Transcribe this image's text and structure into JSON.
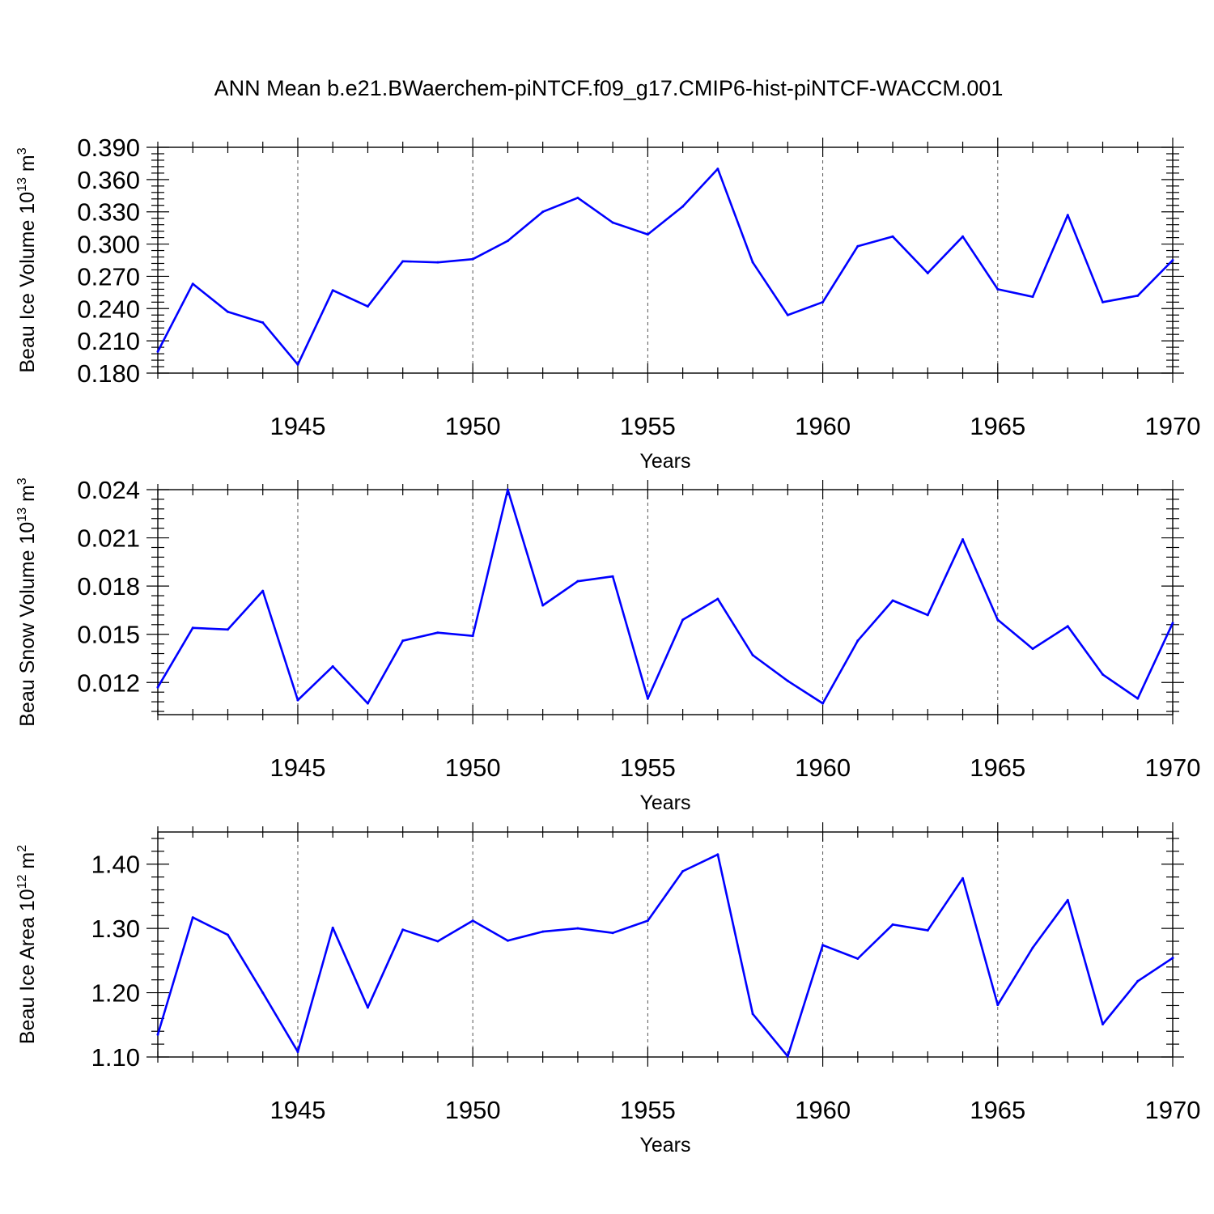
{
  "title": "ANN Mean b.e21.BWaerchem-piNTCF.f09_g17.CMIP6-hist-piNTCF-WACCM.001",
  "colors": {
    "line": "#0000ff",
    "axis": "#000000",
    "grid": "#555555"
  },
  "chart_data": [
    {
      "type": "line",
      "ylabel_main": "Beau Ice Volume 10",
      "ylabel_exp": "13",
      "ylabel_unit": " m",
      "ylabel_unit_exp": "3",
      "xlabel": "Years",
      "xlim": [
        1941,
        1970
      ],
      "ylim": [
        0.18,
        0.39
      ],
      "yticks": [
        0.18,
        0.21,
        0.24,
        0.27,
        0.3,
        0.33,
        0.36,
        0.39
      ],
      "ytick_labels": [
        "0.180",
        "0.210",
        "0.240",
        "0.270",
        "0.300",
        "0.330",
        "0.360",
        "0.390"
      ],
      "xticks": [
        1945,
        1950,
        1955,
        1960,
        1965,
        1970
      ],
      "xtick_labels": [
        "1945",
        "1950",
        "1955",
        "1960",
        "1965",
        "1970"
      ],
      "grid_x": [
        1945,
        1950,
        1955,
        1960,
        1965
      ],
      "x": [
        1941,
        1942,
        1943,
        1944,
        1945,
        1946,
        1947,
        1948,
        1949,
        1950,
        1951,
        1952,
        1953,
        1954,
        1955,
        1956,
        1957,
        1958,
        1959,
        1960,
        1961,
        1962,
        1963,
        1964,
        1965,
        1966,
        1967,
        1968,
        1969,
        1970
      ],
      "values": [
        0.2,
        0.263,
        0.237,
        0.227,
        0.188,
        0.257,
        0.242,
        0.284,
        0.283,
        0.286,
        0.303,
        0.33,
        0.343,
        0.32,
        0.309,
        0.335,
        0.37,
        0.283,
        0.234,
        0.246,
        0.298,
        0.307,
        0.273,
        0.307,
        0.258,
        0.251,
        0.327,
        0.246,
        0.252,
        0.285
      ]
    },
    {
      "type": "line",
      "ylabel_main": "Beau Snow Volume 10",
      "ylabel_exp": "13",
      "ylabel_unit": " m",
      "ylabel_unit_exp": "3",
      "xlabel": "Years",
      "xlim": [
        1941,
        1970
      ],
      "ylim": [
        0.01,
        0.024
      ],
      "yticks": [
        0.012,
        0.015,
        0.018,
        0.021,
        0.024
      ],
      "ytick_labels": [
        "0.012",
        "0.015",
        "0.018",
        "0.021",
        "0.024"
      ],
      "xticks": [
        1945,
        1950,
        1955,
        1960,
        1965,
        1970
      ],
      "xtick_labels": [
        "1945",
        "1950",
        "1955",
        "1960",
        "1965",
        "1970"
      ],
      "grid_x": [
        1945,
        1950,
        1955,
        1960,
        1965
      ],
      "x": [
        1941,
        1942,
        1943,
        1944,
        1945,
        1946,
        1947,
        1948,
        1949,
        1950,
        1951,
        1952,
        1953,
        1954,
        1955,
        1956,
        1957,
        1958,
        1959,
        1960,
        1961,
        1962,
        1963,
        1964,
        1965,
        1966,
        1967,
        1968,
        1969,
        1970
      ],
      "values": [
        0.0117,
        0.0154,
        0.0153,
        0.0177,
        0.0109,
        0.013,
        0.0107,
        0.0146,
        0.0151,
        0.0149,
        0.024,
        0.0168,
        0.0183,
        0.0186,
        0.011,
        0.0159,
        0.0172,
        0.0137,
        0.0121,
        0.0107,
        0.0146,
        0.0171,
        0.0162,
        0.0209,
        0.0159,
        0.0141,
        0.0155,
        0.0125,
        0.011,
        0.0157
      ]
    },
    {
      "type": "line",
      "ylabel_main": "Beau Ice Area 10",
      "ylabel_exp": "12",
      "ylabel_unit": " m",
      "ylabel_unit_exp": "2",
      "xlabel": "Years",
      "xlim": [
        1941,
        1970
      ],
      "ylim": [
        1.1,
        1.45
      ],
      "yticks": [
        1.1,
        1.2,
        1.3,
        1.4
      ],
      "ytick_labels": [
        "1.10",
        "1.20",
        "1.30",
        "1.40"
      ],
      "xticks": [
        1945,
        1950,
        1955,
        1960,
        1965,
        1970
      ],
      "xtick_labels": [
        "1945",
        "1950",
        "1955",
        "1960",
        "1965",
        "1970"
      ],
      "grid_x": [
        1945,
        1950,
        1955,
        1960,
        1965
      ],
      "x": [
        1941,
        1942,
        1943,
        1944,
        1945,
        1946,
        1947,
        1948,
        1949,
        1950,
        1951,
        1952,
        1953,
        1954,
        1955,
        1956,
        1957,
        1958,
        1959,
        1960,
        1961,
        1962,
        1963,
        1964,
        1965,
        1966,
        1967,
        1968,
        1969,
        1970
      ],
      "values": [
        1.135,
        1.317,
        1.29,
        1.2,
        1.108,
        1.301,
        1.177,
        1.298,
        1.28,
        1.312,
        1.281,
        1.295,
        1.3,
        1.293,
        1.312,
        1.389,
        1.415,
        1.167,
        1.101,
        1.274,
        1.253,
        1.306,
        1.297,
        1.378,
        1.181,
        1.27,
        1.344,
        1.151,
        1.218,
        1.254
      ]
    }
  ]
}
